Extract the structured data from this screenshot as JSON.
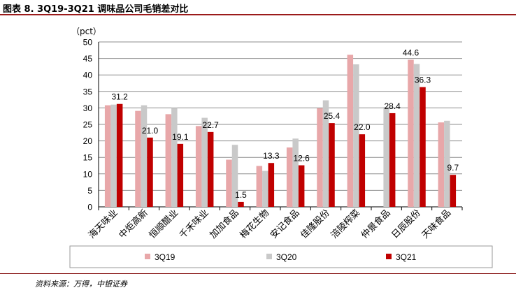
{
  "header": {
    "title": "图表 8. 3Q19-3Q21 调味品公司毛销差对比"
  },
  "footer": {
    "source": "资料来源：万得，中银证券"
  },
  "colors": {
    "3Q19": "#e8a7a9",
    "3Q20": "#c9c9c9",
    "3Q21": "#c00000",
    "accent_rule": "#9b1b1b"
  },
  "chart_data": {
    "type": "bar",
    "unit_label": "（pct）",
    "categories": [
      "海天味业",
      "中炬高新",
      "恒顺醋业",
      "千禾味业",
      "加加食品",
      "梅花生物",
      "安记食品",
      "佳隆股份",
      "涪陵榨菜",
      "仲景食品",
      "日辰股份",
      "天味食品"
    ],
    "series": [
      {
        "name": "3Q19",
        "values": [
          30.8,
          29.1,
          28.1,
          24.5,
          14.3,
          12.4,
          18.0,
          29.9,
          46.1,
          0,
          44.6,
          25.6
        ]
      },
      {
        "name": "3Q20",
        "values": [
          31.0,
          30.8,
          30.0,
          27.0,
          18.8,
          10.9,
          20.7,
          32.3,
          43.2,
          30.3,
          43.3,
          26.1
        ]
      },
      {
        "name": "3Q21",
        "values": [
          31.2,
          21.0,
          19.1,
          22.7,
          1.5,
          13.3,
          12.6,
          25.4,
          22.0,
          28.4,
          36.3,
          9.7
        ]
      }
    ],
    "data_labels": {
      "3Q19": [
        null,
        null,
        null,
        null,
        null,
        null,
        null,
        null,
        null,
        null,
        "44.6",
        null
      ],
      "3Q21": [
        "31.2",
        "21.0",
        "19.1",
        "22.7",
        "1.5",
        "13.3",
        "12.6",
        "25.4",
        "22.0",
        "28.4",
        "36.3",
        "9.7"
      ]
    },
    "ylim": [
      0,
      50
    ],
    "yticks": [
      "0",
      "5",
      "10",
      "15",
      "20",
      "25",
      "30",
      "35",
      "40",
      "45",
      "50"
    ],
    "grid": true,
    "legend_position": "bottom"
  }
}
